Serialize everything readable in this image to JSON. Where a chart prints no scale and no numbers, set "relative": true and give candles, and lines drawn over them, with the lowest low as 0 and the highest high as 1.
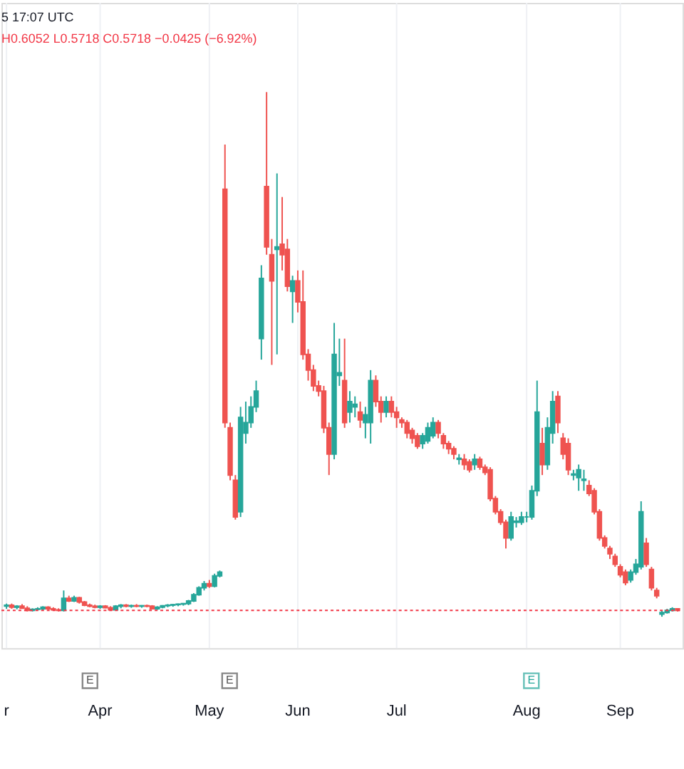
{
  "chart_data": {
    "type": "candlestick",
    "relative": true,
    "grid": "x",
    "categories": [
      "r",
      null,
      null,
      null,
      null,
      null,
      null,
      null,
      null,
      null,
      null,
      null,
      null,
      null,
      null,
      null,
      null,
      null,
      "Apr",
      null,
      null,
      null,
      null,
      null,
      null,
      null,
      null,
      null,
      null,
      null,
      null,
      null,
      null,
      null,
      null,
      null,
      null,
      null,
      null,
      "May",
      null,
      null,
      null,
      null,
      null,
      null,
      null,
      null,
      null,
      null,
      null,
      null,
      null,
      null,
      null,
      null,
      "Jun",
      null,
      null,
      null,
      null,
      null,
      null,
      null,
      null,
      null,
      null,
      null,
      null,
      null,
      null,
      null,
      null,
      null,
      null,
      "Jul",
      null,
      null,
      null,
      null,
      null,
      null,
      null,
      null,
      null,
      null,
      null,
      null,
      null,
      null,
      null,
      null,
      null,
      null,
      null,
      null,
      null,
      null,
      null,
      null,
      "Aug",
      null,
      null,
      null,
      null,
      null,
      null,
      null,
      null,
      null,
      null,
      null,
      null,
      null,
      null,
      null,
      null,
      null,
      "Sep",
      null,
      null,
      null,
      null,
      null,
      null,
      null,
      null,
      null,
      null,
      null
    ],
    "ohlc": [
      [
        0.02,
        0.025,
        0.015,
        0.022
      ],
      [
        0.022,
        0.025,
        0.015,
        0.018
      ],
      [
        0.018,
        0.022,
        0.014,
        0.02
      ],
      [
        0.02,
        0.024,
        0.015,
        0.016
      ],
      [
        0.016,
        0.02,
        0.01,
        0.012
      ],
      [
        0.012,
        0.016,
        0.01,
        0.014
      ],
      [
        0.014,
        0.018,
        0.012,
        0.015
      ],
      [
        0.015,
        0.02,
        0.012,
        0.018
      ],
      [
        0.018,
        0.02,
        0.013,
        0.015
      ],
      [
        0.015,
        0.018,
        0.012,
        0.013
      ],
      [
        0.013,
        0.016,
        0.01,
        0.012
      ],
      [
        0.012,
        0.05,
        0.01,
        0.035
      ],
      [
        0.035,
        0.04,
        0.028,
        0.03
      ],
      [
        0.03,
        0.04,
        0.028,
        0.036
      ],
      [
        0.036,
        0.038,
        0.025,
        0.028
      ],
      [
        0.028,
        0.03,
        0.02,
        0.022
      ],
      [
        0.022,
        0.025,
        0.018,
        0.02
      ],
      [
        0.02,
        0.023,
        0.016,
        0.018
      ],
      [
        0.018,
        0.022,
        0.015,
        0.02
      ],
      [
        0.02,
        0.022,
        0.016,
        0.017
      ],
      [
        0.017,
        0.02,
        0.012,
        0.013
      ],
      [
        0.013,
        0.022,
        0.012,
        0.02
      ],
      [
        0.02,
        0.024,
        0.016,
        0.022
      ],
      [
        0.022,
        0.024,
        0.018,
        0.02
      ],
      [
        0.02,
        0.023,
        0.017,
        0.021
      ],
      [
        0.021,
        0.024,
        0.018,
        0.02
      ],
      [
        0.02,
        0.022,
        0.017,
        0.021
      ],
      [
        0.021,
        0.023,
        0.018,
        0.02
      ],
      [
        0.02,
        0.022,
        0.014,
        0.015
      ],
      [
        0.015,
        0.02,
        0.013,
        0.018
      ],
      [
        0.018,
        0.022,
        0.016,
        0.021
      ],
      [
        0.021,
        0.024,
        0.018,
        0.022
      ],
      [
        0.022,
        0.024,
        0.019,
        0.023
      ],
      [
        0.023,
        0.025,
        0.02,
        0.024
      ],
      [
        0.024,
        0.026,
        0.021,
        0.025
      ],
      [
        0.025,
        0.032,
        0.022,
        0.03
      ],
      [
        0.03,
        0.045,
        0.028,
        0.042
      ],
      [
        0.042,
        0.058,
        0.04,
        0.055
      ],
      [
        0.055,
        0.068,
        0.05,
        0.063
      ],
      [
        0.063,
        0.07,
        0.055,
        0.058
      ],
      [
        0.058,
        0.082,
        0.056,
        0.078
      ],
      [
        0.078,
        0.088,
        0.075,
        0.085
      ],
      [
        0.815,
        0.9,
        0.36,
        0.37
      ],
      [
        0.36,
        0.37,
        0.26,
        0.27
      ],
      [
        0.26,
        0.27,
        0.185,
        0.19
      ],
      [
        0.2,
        0.4,
        0.19,
        0.38
      ],
      [
        0.35,
        0.41,
        0.33,
        0.37
      ],
      [
        0.37,
        0.42,
        0.36,
        0.4
      ],
      [
        0.4,
        0.45,
        0.39,
        0.43
      ],
      [
        0.53,
        0.67,
        0.49,
        0.645
      ],
      [
        0.82,
        1.0,
        0.69,
        0.705
      ],
      [
        0.69,
        0.72,
        0.48,
        0.64
      ],
      [
        0.7,
        0.845,
        0.5,
        0.705
      ],
      [
        0.71,
        0.8,
        0.66,
        0.69
      ],
      [
        0.7,
        0.72,
        0.62,
        0.63
      ],
      [
        0.62,
        0.65,
        0.56,
        0.64
      ],
      [
        0.64,
        0.66,
        0.58,
        0.6
      ],
      [
        0.6,
        0.66,
        0.49,
        0.5
      ],
      [
        0.5,
        0.51,
        0.45,
        0.47
      ],
      [
        0.47,
        0.48,
        0.43,
        0.44
      ],
      [
        0.44,
        0.45,
        0.42,
        0.43
      ],
      [
        0.43,
        0.44,
        0.35,
        0.36
      ],
      [
        0.36,
        0.37,
        0.27,
        0.31
      ],
      [
        0.31,
        0.56,
        0.3,
        0.5
      ],
      [
        0.46,
        0.53,
        0.44,
        0.465
      ],
      [
        0.45,
        0.53,
        0.36,
        0.37
      ],
      [
        0.39,
        0.43,
        0.37,
        0.41
      ],
      [
        0.4,
        0.42,
        0.38,
        0.405
      ],
      [
        0.39,
        0.41,
        0.36,
        0.375
      ],
      [
        0.37,
        0.4,
        0.34,
        0.385
      ],
      [
        0.37,
        0.47,
        0.33,
        0.45
      ],
      [
        0.45,
        0.46,
        0.4,
        0.41
      ],
      [
        0.41,
        0.42,
        0.37,
        0.39
      ],
      [
        0.39,
        0.42,
        0.38,
        0.41
      ],
      [
        0.41,
        0.42,
        0.38,
        0.39
      ],
      [
        0.39,
        0.4,
        0.36,
        0.38
      ],
      [
        0.375,
        0.38,
        0.36,
        0.37
      ],
      [
        0.37,
        0.375,
        0.34,
        0.35
      ],
      [
        0.355,
        0.36,
        0.33,
        0.34
      ],
      [
        0.345,
        0.35,
        0.32,
        0.325
      ],
      [
        0.33,
        0.35,
        0.32,
        0.345
      ],
      [
        0.335,
        0.37,
        0.33,
        0.36
      ],
      [
        0.345,
        0.38,
        0.34,
        0.37
      ],
      [
        0.37,
        0.375,
        0.34,
        0.35
      ],
      [
        0.345,
        0.35,
        0.32,
        0.33
      ],
      [
        0.33,
        0.335,
        0.31,
        0.32
      ],
      [
        0.32,
        0.325,
        0.3,
        0.31
      ],
      [
        0.3,
        0.31,
        0.29,
        0.302
      ],
      [
        0.3,
        0.31,
        0.28,
        0.29
      ],
      [
        0.295,
        0.3,
        0.275,
        0.28
      ],
      [
        0.29,
        0.31,
        0.28,
        0.3
      ],
      [
        0.3,
        0.305,
        0.28,
        0.285
      ],
      [
        0.285,
        0.29,
        0.27,
        0.275
      ],
      [
        0.28,
        0.285,
        0.22,
        0.225
      ],
      [
        0.225,
        0.23,
        0.195,
        0.2
      ],
      [
        0.2,
        0.205,
        0.175,
        0.18
      ],
      [
        0.18,
        0.185,
        0.13,
        0.15
      ],
      [
        0.15,
        0.2,
        0.145,
        0.19
      ],
      [
        0.18,
        0.19,
        0.17,
        0.182
      ],
      [
        0.18,
        0.2,
        0.175,
        0.19
      ],
      [
        0.19,
        0.2,
        0.18,
        0.19
      ],
      [
        0.19,
        0.25,
        0.185,
        0.24
      ],
      [
        0.24,
        0.45,
        0.23,
        0.39
      ],
      [
        0.33,
        0.36,
        0.27,
        0.29
      ],
      [
        0.29,
        0.38,
        0.28,
        0.36
      ],
      [
        0.35,
        0.43,
        0.33,
        0.41
      ],
      [
        0.42,
        0.43,
        0.35,
        0.37
      ],
      [
        0.34,
        0.35,
        0.3,
        0.31
      ],
      [
        0.33,
        0.34,
        0.27,
        0.28
      ],
      [
        0.27,
        0.28,
        0.26,
        0.272
      ],
      [
        0.265,
        0.29,
        0.24,
        0.28
      ],
      [
        0.26,
        0.28,
        0.24,
        0.262
      ],
      [
        0.25,
        0.26,
        0.23,
        0.235
      ],
      [
        0.24,
        0.245,
        0.195,
        0.2
      ],
      [
        0.2,
        0.205,
        0.145,
        0.15
      ],
      [
        0.15,
        0.155,
        0.13,
        0.135
      ],
      [
        0.13,
        0.135,
        0.11,
        0.12
      ],
      [
        0.115,
        0.12,
        0.095,
        0.1
      ],
      [
        0.095,
        0.1,
        0.075,
        0.08
      ],
      [
        0.085,
        0.09,
        0.06,
        0.065
      ],
      [
        0.07,
        0.09,
        0.065,
        0.085
      ],
      [
        0.085,
        0.11,
        0.08,
        0.1
      ],
      [
        0.095,
        0.22,
        0.09,
        0.2
      ],
      [
        0.14,
        0.15,
        0.095,
        0.1
      ],
      [
        0.09,
        0.095,
        0.05,
        0.055
      ],
      [
        0.05,
        0.055,
        0.035,
        0.04
      ],
      [
        0.005,
        0.012,
        0.0,
        0.008
      ],
      [
        0.008,
        0.015,
        0.006,
        0.012
      ],
      [
        0.012,
        0.018,
        0.01,
        0.015
      ],
      [
        0.015,
        0.016,
        0.01,
        0.012
      ]
    ],
    "ref_lines": [
      {
        "axis": "y",
        "value": 0.012,
        "line_style": "dotted",
        "color": "#f23645"
      }
    ],
    "annotations": [
      "5 17:07 UTC",
      "H0.6052  L0.5718  C0.5718  −0.0425 (−6.92%)",
      "E",
      "E",
      "E"
    ]
  }
}
